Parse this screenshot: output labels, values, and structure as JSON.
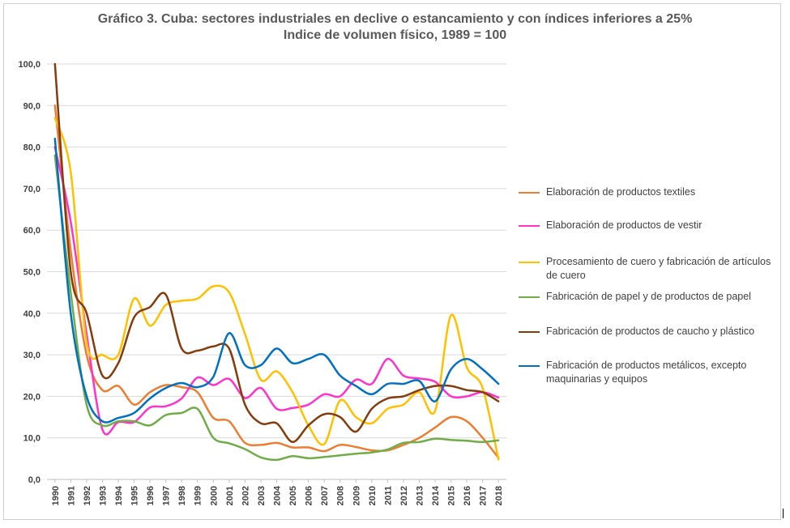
{
  "chart_data": {
    "type": "line",
    "title": "Gráfico 3. Cuba: sectores industriales en declive o estancamiento y con índices inferiores a 25%",
    "subtitle": "Indice de volumen físico, 1989 = 100",
    "xlabel": "",
    "ylabel": "",
    "ylim": [
      0,
      100
    ],
    "yticks": [
      "0,0",
      "10,0",
      "20,0",
      "30,0",
      "40,0",
      "50,0",
      "60,0",
      "70,0",
      "80,0",
      "90,0",
      "100,0"
    ],
    "grid": true,
    "legend_position": "right",
    "categories": [
      "1990",
      "1991",
      "1992",
      "1993",
      "1994",
      "1995",
      "1996",
      "1997",
      "1998",
      "1999",
      "2000",
      "2001",
      "2002",
      "2003",
      "2004",
      "2005",
      "2006",
      "2007",
      "2008",
      "2009",
      "2010",
      "2011",
      "2012",
      "2013",
      "2014",
      "2015",
      "2016",
      "2017",
      "2018"
    ],
    "series": [
      {
        "name": "Elaboración de productos textiles",
        "color": "#ED7D31",
        "values": [
          90,
          55,
          30,
          21.5,
          22.5,
          18,
          21,
          22.7,
          22.2,
          21,
          14.8,
          14,
          8.8,
          8.3,
          8.8,
          7.7,
          7.7,
          6.8,
          8.3,
          7.8,
          7,
          7,
          8.3,
          10,
          12.5,
          15,
          14,
          10,
          5.2
        ]
      },
      {
        "name": "Elaboración de productos de vestir",
        "color": "#FF33CC",
        "values": [
          80,
          62,
          35,
          12,
          13.8,
          13.8,
          17.3,
          17.6,
          19.5,
          24.5,
          22.7,
          24.2,
          19.6,
          22,
          17,
          17.2,
          18,
          20.5,
          20,
          24,
          23,
          29,
          25,
          24.3,
          23.5,
          20,
          20,
          21,
          19.7
        ]
      },
      {
        "name": "Procesamiento de cuero y fabricación de artículos de cuero",
        "color": "#FFC000",
        "values": [
          87,
          74,
          33,
          30,
          30,
          43.5,
          37,
          42,
          43,
          43.5,
          46.5,
          45,
          35,
          24,
          26,
          21,
          13,
          8.5,
          19,
          15,
          13.5,
          17,
          18,
          21,
          16.5,
          39.5,
          27,
          22,
          4.8
        ]
      },
      {
        "name": "Fabricación de papel y de productos de papel",
        "color": "#70AD47",
        "values": [
          78,
          45,
          18,
          13,
          14,
          14,
          13,
          15.5,
          16,
          17,
          10,
          8.7,
          7.3,
          5.3,
          4.7,
          5.6,
          5.1,
          5.4,
          5.8,
          6.2,
          6.5,
          7.2,
          8.8,
          9,
          9.8,
          9.5,
          9.3,
          9,
          9.4
        ]
      },
      {
        "name": "Fabricación de productos de caucho y plástico",
        "color": "#843C0C",
        "values": [
          100,
          50,
          40,
          25,
          28,
          39,
          41.5,
          44.5,
          31.5,
          31,
          32,
          31.5,
          18,
          13.5,
          13.5,
          9,
          13,
          15.7,
          15,
          11.5,
          17,
          19.5,
          20,
          21.5,
          22.5,
          22.5,
          21.5,
          21,
          18.8
        ]
      },
      {
        "name": "Fabricación de productos metálicos, excepto maquinarias y equipos",
        "color": "#0070C0",
        "values": [
          82,
          40,
          20,
          14,
          14.8,
          16,
          19.5,
          22,
          23.2,
          22.2,
          24.7,
          35.2,
          27.5,
          27.5,
          31.5,
          28,
          29,
          30,
          25,
          22.5,
          20.5,
          23,
          23,
          23.7,
          18.8,
          26.5,
          29,
          26.5,
          23
        ]
      }
    ]
  }
}
